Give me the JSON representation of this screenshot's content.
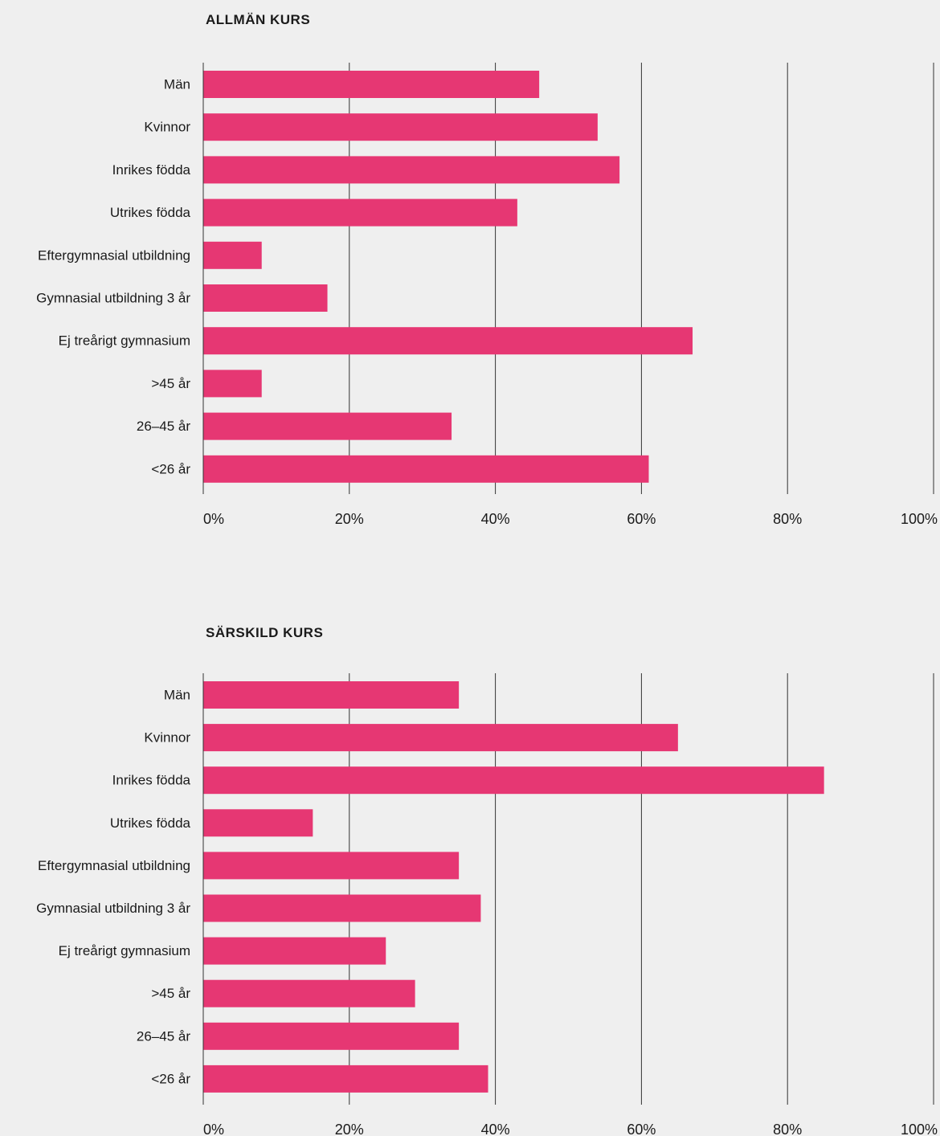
{
  "colors": {
    "bar": "#e63773",
    "background": "#efefef",
    "grid": "#333333",
    "text": "#1a1a1a"
  },
  "chart_data": [
    {
      "type": "bar",
      "orientation": "horizontal",
      "title": "ALLMÄN KURS",
      "categories": [
        "Män",
        "Kvinnor",
        "Inrikes födda",
        "Utrikes födda",
        "Eftergymnasial utbildning",
        "Gymnasial utbildning 3 år",
        "Ej treårigt gymnasium",
        ">45 år",
        "26–45 år",
        "<26 år"
      ],
      "values": [
        46,
        54,
        57,
        43,
        8,
        17,
        67,
        8,
        34,
        61
      ],
      "xlim": [
        0,
        100
      ],
      "xticks": [
        "0%",
        "20%",
        "40%",
        "60%",
        "80%",
        "100%"
      ],
      "grid": true
    },
    {
      "type": "bar",
      "orientation": "horizontal",
      "title": "SÄRSKILD KURS",
      "categories": [
        "Män",
        "Kvinnor",
        "Inrikes födda",
        "Utrikes födda",
        "Eftergymnasial utbildning",
        "Gymnasial utbildning 3 år",
        "Ej treårigt gymnasium",
        ">45 år",
        "26–45 år",
        "<26 år"
      ],
      "values": [
        35,
        65,
        85,
        15,
        35,
        38,
        25,
        29,
        35,
        39
      ],
      "xlim": [
        0,
        100
      ],
      "xticks": [
        "0%",
        "20%",
        "40%",
        "60%",
        "80%",
        "100%"
      ],
      "grid": true
    }
  ]
}
